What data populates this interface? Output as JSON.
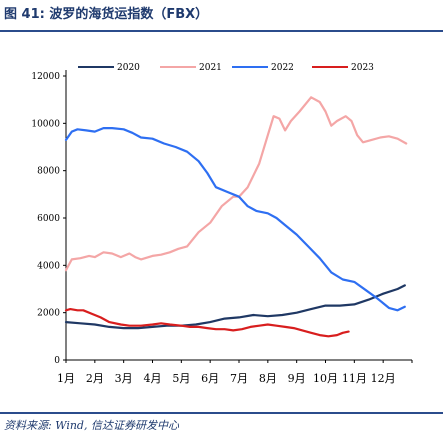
{
  "header": {
    "title": "图 41:  波罗的海货运指数（FBX）"
  },
  "footer": {
    "source": "资料来源:  Wind,  信达证券研发中心"
  },
  "colors": {
    "rule": "#2b4c8c",
    "title": "#1f3a6e"
  },
  "chart_data": {
    "type": "line",
    "title": "",
    "xlabel": "",
    "ylabel": "",
    "categories": [
      "1月",
      "2月",
      "3月",
      "4月",
      "5月",
      "6月",
      "7月",
      "8月",
      "9月",
      "10月",
      "11月",
      "12月"
    ],
    "yticks": [
      0,
      2000,
      4000,
      6000,
      8000,
      10000,
      12000
    ],
    "ylim": [
      0,
      12000
    ],
    "xlim": [
      1,
      13
    ],
    "grid": false,
    "legend_position": "top",
    "series": [
      {
        "name": "2020",
        "color": "#1f3864",
        "points": [
          [
            1.0,
            1600
          ],
          [
            1.5,
            1550
          ],
          [
            2.0,
            1500
          ],
          [
            2.5,
            1400
          ],
          [
            3.0,
            1350
          ],
          [
            3.5,
            1350
          ],
          [
            4.0,
            1400
          ],
          [
            4.5,
            1450
          ],
          [
            5.0,
            1450
          ],
          [
            5.5,
            1500
          ],
          [
            6.0,
            1600
          ],
          [
            6.5,
            1750
          ],
          [
            7.0,
            1800
          ],
          [
            7.5,
            1900
          ],
          [
            8.0,
            1850
          ],
          [
            8.5,
            1900
          ],
          [
            9.0,
            2000
          ],
          [
            9.5,
            2150
          ],
          [
            10.0,
            2300
          ],
          [
            10.5,
            2300
          ],
          [
            11.0,
            2350
          ],
          [
            11.5,
            2550
          ],
          [
            12.0,
            2800
          ],
          [
            12.5,
            3000
          ],
          [
            12.75,
            3150
          ]
        ]
      },
      {
        "name": "2021",
        "color": "#f4a6a6",
        "points": [
          [
            1.0,
            3800
          ],
          [
            1.2,
            4250
          ],
          [
            1.5,
            4300
          ],
          [
            1.8,
            4400
          ],
          [
            2.0,
            4350
          ],
          [
            2.3,
            4550
          ],
          [
            2.6,
            4500
          ],
          [
            2.9,
            4350
          ],
          [
            3.2,
            4500
          ],
          [
            3.4,
            4350
          ],
          [
            3.6,
            4250
          ],
          [
            4.0,
            4400
          ],
          [
            4.3,
            4450
          ],
          [
            4.6,
            4550
          ],
          [
            4.9,
            4700
          ],
          [
            5.2,
            4800
          ],
          [
            5.6,
            5400
          ],
          [
            6.0,
            5800
          ],
          [
            6.4,
            6500
          ],
          [
            6.8,
            6900
          ],
          [
            7.0,
            6900
          ],
          [
            7.3,
            7300
          ],
          [
            7.7,
            8300
          ],
          [
            8.0,
            9500
          ],
          [
            8.2,
            10300
          ],
          [
            8.4,
            10200
          ],
          [
            8.6,
            9700
          ],
          [
            8.8,
            10100
          ],
          [
            9.1,
            10500
          ],
          [
            9.5,
            11100
          ],
          [
            9.8,
            10900
          ],
          [
            10.0,
            10500
          ],
          [
            10.2,
            9900
          ],
          [
            10.4,
            10100
          ],
          [
            10.7,
            10300
          ],
          [
            10.9,
            10100
          ],
          [
            11.1,
            9500
          ],
          [
            11.3,
            9200
          ],
          [
            11.6,
            9300
          ],
          [
            11.9,
            9400
          ],
          [
            12.2,
            9450
          ],
          [
            12.5,
            9350
          ],
          [
            12.8,
            9150
          ]
        ]
      },
      {
        "name": "2022",
        "color": "#2e6ff2",
        "points": [
          [
            1.0,
            9300
          ],
          [
            1.2,
            9650
          ],
          [
            1.4,
            9750
          ],
          [
            1.7,
            9700
          ],
          [
            2.0,
            9650
          ],
          [
            2.3,
            9800
          ],
          [
            2.6,
            9800
          ],
          [
            3.0,
            9750
          ],
          [
            3.3,
            9600
          ],
          [
            3.6,
            9400
          ],
          [
            4.0,
            9350
          ],
          [
            4.4,
            9150
          ],
          [
            4.8,
            9000
          ],
          [
            5.2,
            8800
          ],
          [
            5.6,
            8400
          ],
          [
            5.9,
            7900
          ],
          [
            6.2,
            7300
          ],
          [
            6.6,
            7100
          ],
          [
            7.0,
            6900
          ],
          [
            7.3,
            6500
          ],
          [
            7.6,
            6300
          ],
          [
            8.0,
            6200
          ],
          [
            8.3,
            6000
          ],
          [
            8.6,
            5700
          ],
          [
            9.0,
            5300
          ],
          [
            9.4,
            4800
          ],
          [
            9.8,
            4300
          ],
          [
            10.2,
            3700
          ],
          [
            10.6,
            3400
          ],
          [
            11.0,
            3300
          ],
          [
            11.4,
            2950
          ],
          [
            11.8,
            2600
          ],
          [
            12.2,
            2200
          ],
          [
            12.5,
            2100
          ],
          [
            12.75,
            2250
          ]
        ]
      },
      {
        "name": "2023",
        "color": "#d81e1e",
        "points": [
          [
            1.0,
            2100
          ],
          [
            1.15,
            2150
          ],
          [
            1.4,
            2100
          ],
          [
            1.6,
            2100
          ],
          [
            1.9,
            1950
          ],
          [
            2.2,
            1800
          ],
          [
            2.5,
            1600
          ],
          [
            2.9,
            1500
          ],
          [
            3.2,
            1450
          ],
          [
            3.6,
            1450
          ],
          [
            4.0,
            1500
          ],
          [
            4.3,
            1550
          ],
          [
            4.6,
            1500
          ],
          [
            5.0,
            1450
          ],
          [
            5.3,
            1400
          ],
          [
            5.6,
            1400
          ],
          [
            5.9,
            1350
          ],
          [
            6.2,
            1300
          ],
          [
            6.5,
            1300
          ],
          [
            6.8,
            1250
          ],
          [
            7.1,
            1300
          ],
          [
            7.4,
            1400
          ],
          [
            7.7,
            1450
          ],
          [
            8.0,
            1500
          ],
          [
            8.3,
            1450
          ],
          [
            8.6,
            1400
          ],
          [
            8.9,
            1350
          ],
          [
            9.2,
            1250
          ],
          [
            9.5,
            1150
          ],
          [
            9.8,
            1050
          ],
          [
            10.1,
            1000
          ],
          [
            10.4,
            1050
          ],
          [
            10.6,
            1150
          ],
          [
            10.8,
            1200
          ]
        ]
      }
    ]
  }
}
